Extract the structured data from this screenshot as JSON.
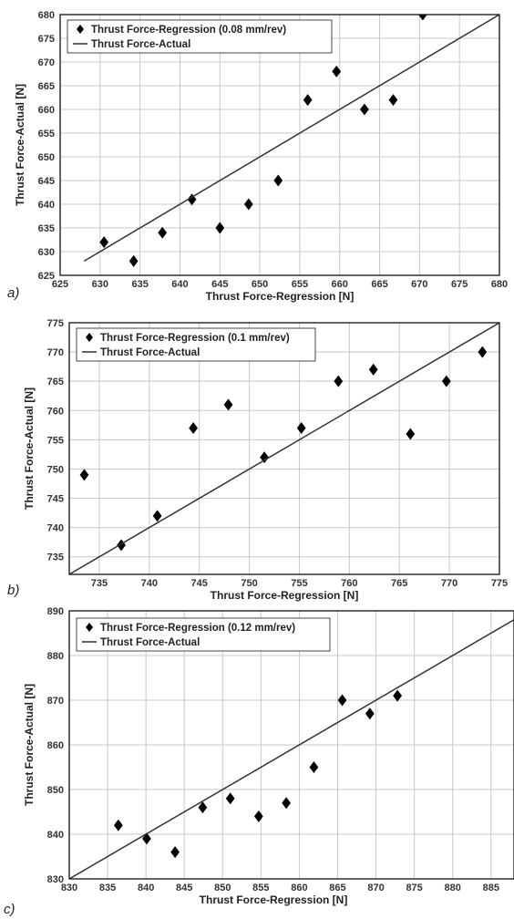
{
  "chart_data": [
    {
      "type": "scatter",
      "panel_label": "a)",
      "xlabel": "Thrust Force-Regression [N]",
      "ylabel": "Thrust Force-Actual [N]",
      "xlim": [
        625,
        680
      ],
      "ylim": [
        625,
        680
      ],
      "xticks": [
        625,
        630,
        635,
        640,
        645,
        650,
        655,
        660,
        665,
        670,
        675,
        680
      ],
      "yticks": [
        625,
        630,
        635,
        640,
        645,
        650,
        655,
        660,
        665,
        670,
        675,
        680
      ],
      "grid": true,
      "legend_position": "top-left",
      "series": [
        {
          "name": "Thrust Force-Regression (0.08 mm/rev)",
          "marker": "diamond",
          "x": [
            630.5,
            634.2,
            637.8,
            641.5,
            645.0,
            648.6,
            652.3,
            656.0,
            659.6,
            663.1,
            666.7,
            670.4
          ],
          "y": [
            632,
            628,
            634,
            641,
            635,
            640,
            645,
            662,
            668,
            660,
            662,
            680
          ]
        },
        {
          "name": "Thrust Force-Actual",
          "line": true,
          "x": [
            628,
            680
          ],
          "y": [
            628,
            680
          ]
        }
      ]
    },
    {
      "type": "scatter",
      "panel_label": "b)",
      "xlabel": "Thrust Force-Regression [N]",
      "ylabel": "Thrust Force-Actual [N]",
      "xlim": [
        732,
        775
      ],
      "ylim": [
        732,
        775
      ],
      "xticks": [
        735,
        740,
        745,
        750,
        755,
        760,
        765,
        770,
        775
      ],
      "yticks": [
        735,
        740,
        745,
        750,
        755,
        760,
        765,
        770,
        775
      ],
      "grid": true,
      "legend_position": "top-left",
      "series": [
        {
          "name": "Thrust Force-Regression (0.1 mm/rev)",
          "marker": "diamond",
          "x": [
            733.5,
            737.2,
            740.8,
            744.4,
            747.9,
            751.5,
            755.2,
            758.9,
            762.4,
            766.1,
            769.7,
            773.3
          ],
          "y": [
            749,
            737,
            742,
            757,
            761,
            752,
            757,
            765,
            767,
            756,
            765,
            770
          ]
        },
        {
          "name": "Thrust Force-Actual",
          "line": true,
          "x": [
            732,
            775
          ],
          "y": [
            732,
            775
          ]
        }
      ]
    },
    {
      "type": "scatter",
      "panel_label": "c)",
      "xlabel": "Thrust Force-Regression [N]",
      "ylabel": "Thrust Force-Actual [N]",
      "xlim": [
        830,
        888
      ],
      "ylim": [
        830,
        890
      ],
      "xticks": [
        830,
        835,
        840,
        845,
        850,
        855,
        860,
        865,
        870,
        875,
        880,
        885
      ],
      "yticks": [
        830,
        840,
        850,
        860,
        870,
        880,
        890
      ],
      "grid": true,
      "legend_position": "top-left",
      "series": [
        {
          "name": "Thrust Force-Regression (0.12 mm/rev)",
          "marker": "diamond",
          "x": [
            836.4,
            840.1,
            843.8,
            847.4,
            851.0,
            854.7,
            858.3,
            861.9,
            865.6,
            869.2,
            872.8
          ],
          "y": [
            842,
            839,
            836,
            846,
            848,
            844,
            847,
            855,
            870,
            867,
            871
          ]
        },
        {
          "name": "Thrust Force-Actual",
          "line": true,
          "x": [
            830,
            888
          ],
          "y": [
            830,
            888
          ]
        }
      ]
    }
  ]
}
